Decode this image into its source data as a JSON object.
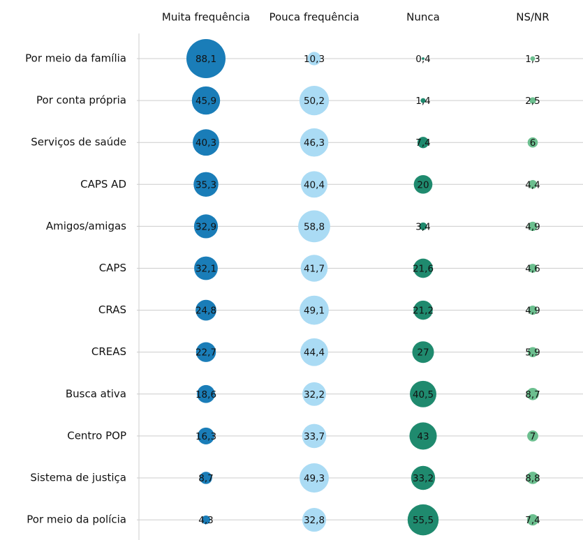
{
  "chart_data": {
    "type": "bubble",
    "categories": [
      "Por meio da família",
      "Por conta própria",
      "Serviços de saúde",
      "CAPS AD",
      "Amigos/amigas",
      "CAPS",
      "CRAS",
      "CREAS",
      "Busca ativa",
      "Centro POP",
      "Sistema de justiça",
      "Por meio da polícia"
    ],
    "series": [
      {
        "name": "Muita frequência",
        "color": "#1a7db8",
        "values": [
          88.1,
          45.9,
          40.3,
          35.3,
          32.9,
          32.1,
          24.8,
          22.7,
          18.6,
          16.3,
          8.7,
          4.3
        ],
        "value_labels": [
          "88,1",
          "45,9",
          "40,3",
          "35,3",
          "32,9",
          "32,1",
          "24,8",
          "22,7",
          "18,6",
          "16,3",
          "8,7",
          "4,3"
        ]
      },
      {
        "name": "Pouca frequência",
        "color": "#aadbf4",
        "values": [
          10.3,
          50.2,
          46.3,
          40.4,
          58.8,
          41.7,
          49.1,
          44.4,
          32.2,
          33.7,
          49.3,
          32.8
        ],
        "value_labels": [
          "10,3",
          "50,2",
          "46,3",
          "40,4",
          "58,8",
          "41,7",
          "49,1",
          "44,4",
          "32,2",
          "33,7",
          "49,3",
          "32,8"
        ]
      },
      {
        "name": "Nunca",
        "color": "#1f8a6e",
        "values": [
          0.4,
          1.4,
          7.4,
          20,
          3.4,
          21.6,
          21.2,
          27,
          40.5,
          43,
          33.2,
          55.5
        ],
        "value_labels": [
          "0,4",
          "1,4",
          "7,4",
          "20",
          "3,4",
          "21,6",
          "21,2",
          "27",
          "40,5",
          "43",
          "33,2",
          "55,5"
        ]
      },
      {
        "name": "NS/NR",
        "color": "#6cbf8f",
        "values": [
          1.3,
          2.5,
          6,
          4.4,
          4.9,
          4.6,
          4.9,
          5.9,
          8.7,
          7,
          8.8,
          7.4
        ],
        "value_labels": [
          "1,3",
          "2,5",
          "6",
          "4,4",
          "4,9",
          "4,6",
          "4,9",
          "5,9",
          "8,7",
          "7",
          "8,8",
          "7,4"
        ]
      }
    ]
  }
}
